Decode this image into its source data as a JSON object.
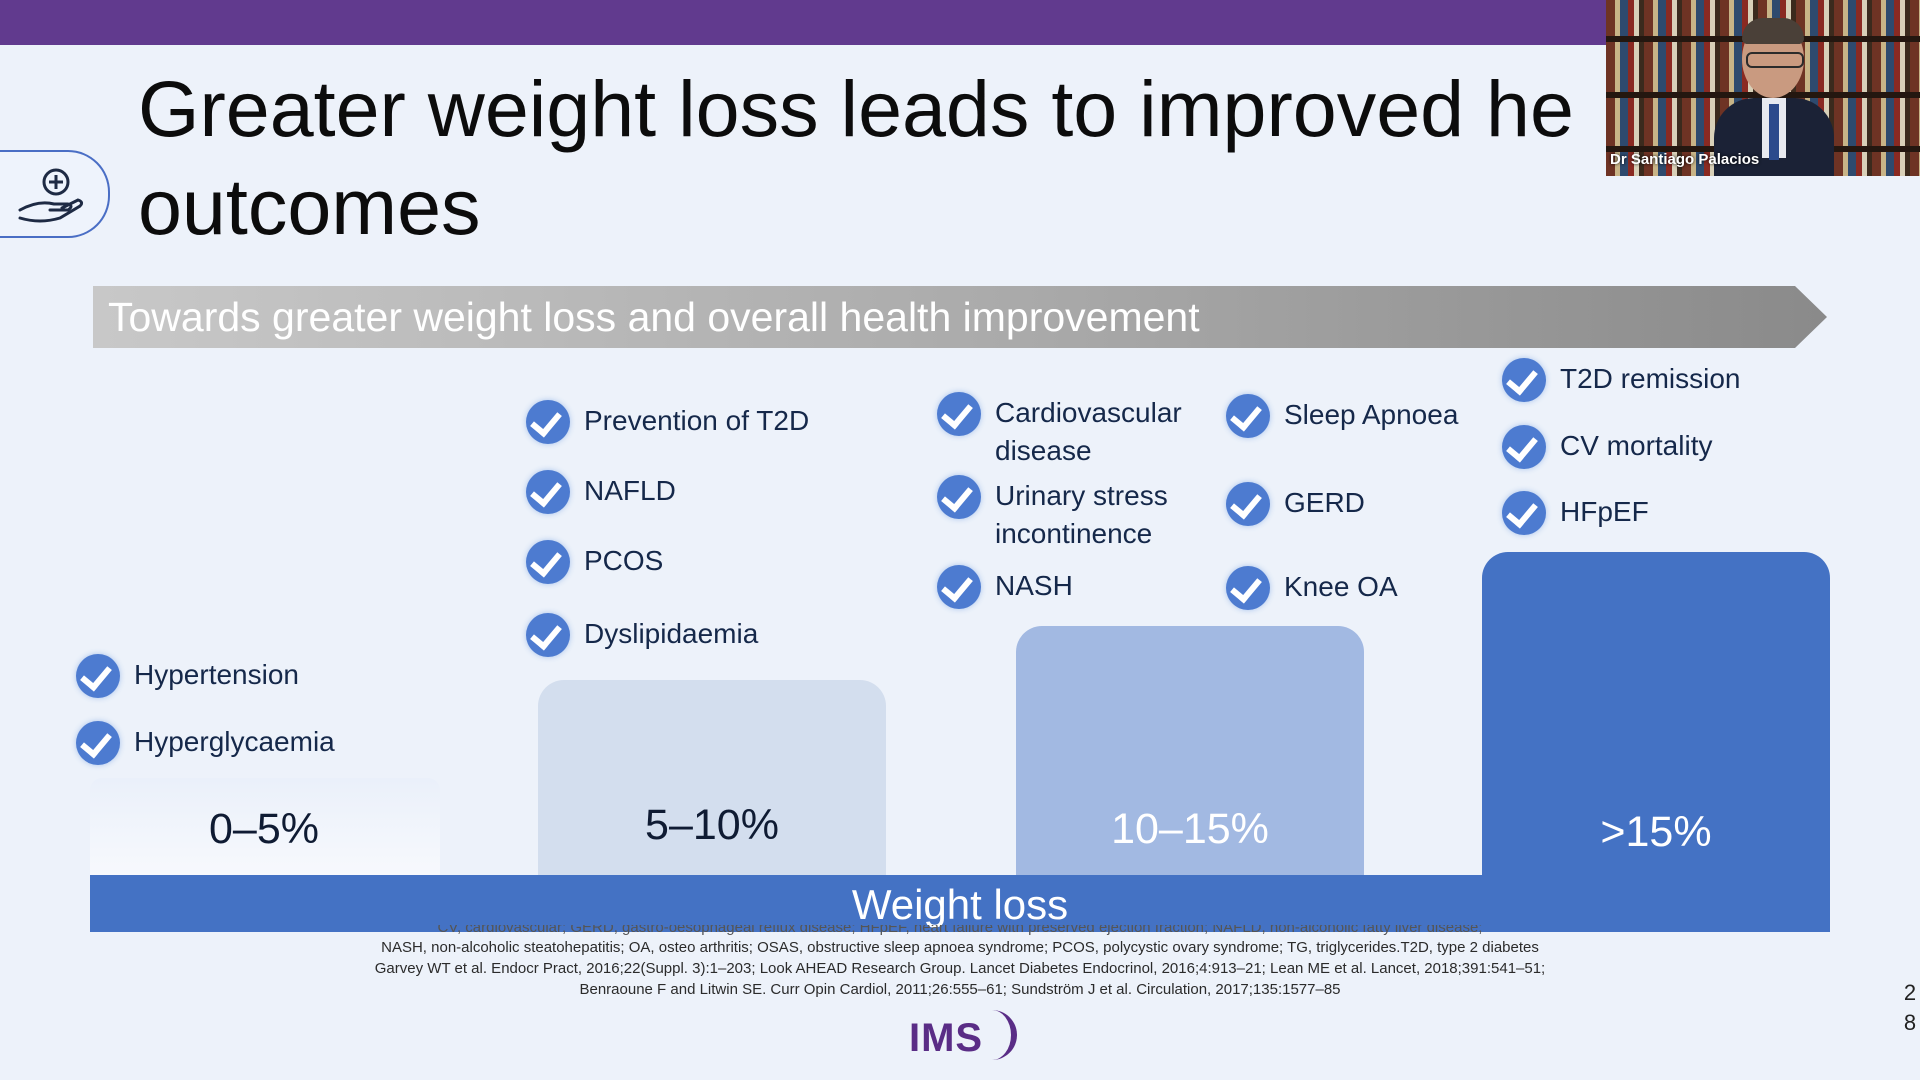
{
  "slide": {
    "title": "Greater weight loss leads to improved health\noutcomes",
    "title_visible": "Greater weight loss leads to improved he",
    "title_line2": "outcomes",
    "arrow_text": "Towards greater weight loss and overall health improvement",
    "page_number": [
      "2",
      "8"
    ]
  },
  "video": {
    "participant_name": "Dr Santiago Palacios"
  },
  "columns": [
    {
      "label": "0–5%",
      "items": [
        "Hypertension",
        "Hyperglycaemia"
      ]
    },
    {
      "label": "5–10%",
      "items": [
        "Prevention of T2D",
        "NAFLD",
        "PCOS",
        "Dyslipidaemia"
      ]
    },
    {
      "label": "10–15%",
      "items": [
        "Cardiovascular\ndisease",
        "Urinary stress\nincontinence",
        "NASH",
        "Sleep Apnoea",
        "GERD",
        "Knee OA"
      ]
    },
    {
      "label": ">15%",
      "items": [
        "T2D remission",
        "CV mortality",
        "HFpEF"
      ]
    }
  ],
  "axis_label": "Weight loss",
  "footnotes": [
    "CV, cardiovascular; GERD, gastro-oesophageal reflux disease; HFpEF, heart failure with preserved ejection fraction; NAFLD, non-alcoholic fatty liver disease;",
    "NASH, non-alcoholic steatohepatitis; OA, osteo arthritis; OSAS, obstructive sleep apnoea syndrome; PCOS, polycystic ovary syndrome; TG, triglycerides.T2D, type 2 diabetes",
    "Garvey WT et al. Endocr Pract, 2016;22(Suppl. 3):1–203; Look AHEAD Research Group. Lancet Diabetes Endocrinol, 2016;4:913–21; Lean ME et al. Lancet, 2018;391:541–51;",
    "Benraoune F and Litwin SE. Curr Opin Cardiol, 2011;26:555–61; Sundström J et al. Circulation, 2017;135:1577–85"
  ],
  "logo_text": "IMS",
  "colors": {
    "top_bar": "#613a8e",
    "accent_blue": "#4472c4",
    "column_light": "#d3deee",
    "column_mid": "#a2b9e2"
  },
  "icons": {
    "hand": "hand-with-plus-icon",
    "check": "check-circle-icon"
  }
}
